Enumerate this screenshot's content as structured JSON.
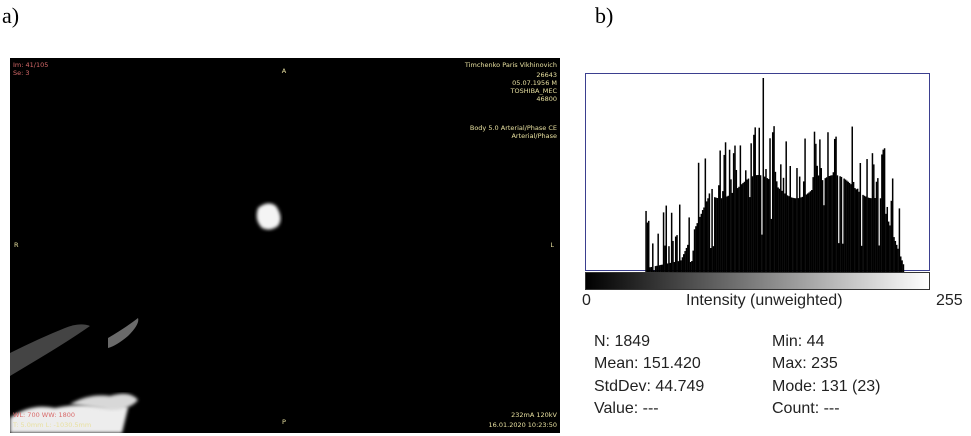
{
  "panels": {
    "a": "a)",
    "b": "b)"
  },
  "ct": {
    "top_left": [
      "Im: 41/105",
      "Se: 3"
    ],
    "top_right": [
      "Timchenko Paris Vikhinovich",
      "26643",
      "05.07.1956 M",
      "TOSHIBA_MEC",
      "46800"
    ],
    "series": [
      "Body 5.0 Arterial/Phase CE",
      "Arterial/Phase"
    ],
    "orient": {
      "A": "A",
      "P": "P",
      "R": "R",
      "L": "L"
    },
    "bottom_left": [
      "WL: 700 WW: 1800",
      "T: 5.0mm L: -1030.5mm"
    ],
    "bottom_right": [
      "232mA 120kV",
      "16.01.2020 10:23:50"
    ]
  },
  "histogram": {
    "xlabel": "Intensity (unweighted)",
    "xmin_label": "0",
    "xmax_label": "255",
    "stats_left": [
      "N: 1849",
      "Mean: 151.420",
      "StdDev: 44.749",
      "Value: ---"
    ],
    "stats_right": [
      "Min: 44",
      "Max: 235",
      "Mode: 131 (23)",
      "Count: ---"
    ]
  },
  "colors": {
    "frame": "#3b3f8f",
    "ct_red": "#d86a6a",
    "ct_yellow": "#e8e0a0"
  }
}
